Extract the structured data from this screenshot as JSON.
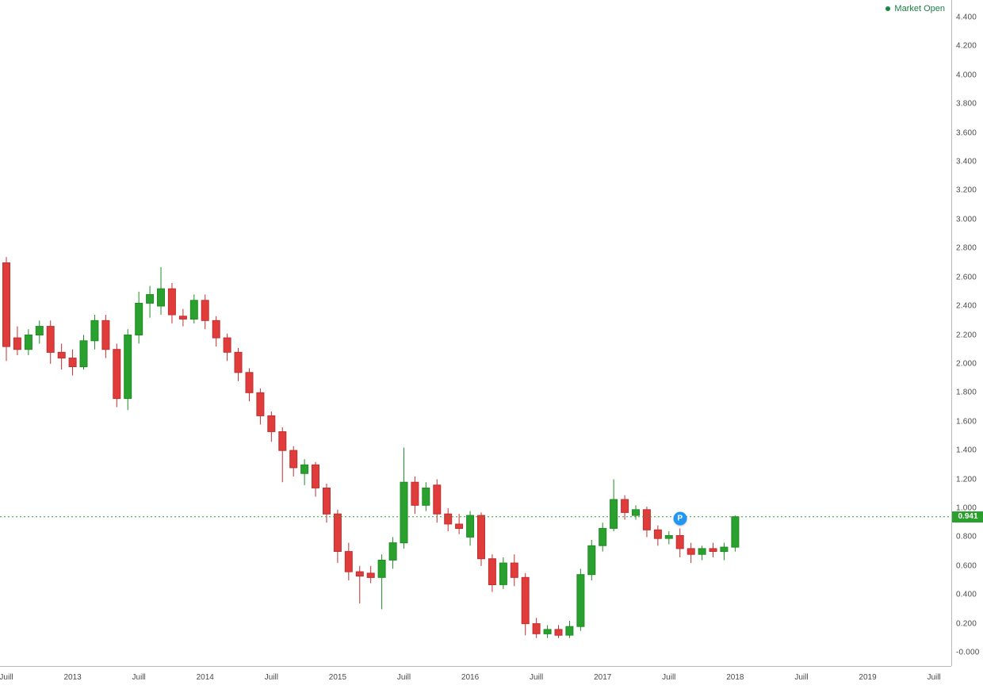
{
  "market_status": {
    "label": "Market Open",
    "color": "#1a7d45",
    "dot_color": "#15873f"
  },
  "chart_data": {
    "type": "candlestick",
    "title": "",
    "interval_hint": "monthly",
    "grid": "off",
    "legend_position": "none",
    "y_axis": {
      "min": 0.0,
      "max": 4.4,
      "step": 0.2,
      "labels": [
        "4.400",
        "4.200",
        "4.000",
        "3.800",
        "3.600",
        "3.400",
        "3.200",
        "3.000",
        "2.800",
        "2.600",
        "2.400",
        "2.200",
        "2.000",
        "1.800",
        "1.600",
        "1.400",
        "1.200",
        "1.000",
        "0.800",
        "0.600",
        "0.400",
        "0.200",
        "-0.000"
      ]
    },
    "x_axis": {
      "ticks": [
        {
          "label": "Juill",
          "month_index": 0
        },
        {
          "label": "2013",
          "month_index": 6
        },
        {
          "label": "Juill",
          "month_index": 12
        },
        {
          "label": "2014",
          "month_index": 18
        },
        {
          "label": "Juill",
          "month_index": 24
        },
        {
          "label": "2015",
          "month_index": 30
        },
        {
          "label": "Juill",
          "month_index": 36
        },
        {
          "label": "2016",
          "month_index": 42
        },
        {
          "label": "Juill",
          "month_index": 48
        },
        {
          "label": "2017",
          "month_index": 54
        },
        {
          "label": "Juill",
          "month_index": 60
        },
        {
          "label": "2018",
          "month_index": 66
        },
        {
          "label": "Juill",
          "month_index": 72
        },
        {
          "label": "2019",
          "month_index": 78
        },
        {
          "label": "Juill",
          "month_index": 84
        }
      ]
    },
    "candles": [
      [
        2.7,
        2.74,
        2.02,
        2.12
      ],
      [
        2.18,
        2.26,
        2.06,
        2.1
      ],
      [
        2.1,
        2.24,
        2.06,
        2.2
      ],
      [
        2.2,
        2.3,
        2.14,
        2.26
      ],
      [
        2.26,
        2.3,
        2.0,
        2.08
      ],
      [
        2.08,
        2.14,
        1.96,
        2.04
      ],
      [
        2.04,
        2.1,
        1.92,
        1.98
      ],
      [
        1.98,
        2.2,
        1.96,
        2.16
      ],
      [
        2.16,
        2.34,
        2.1,
        2.3
      ],
      [
        2.3,
        2.34,
        2.04,
        2.1
      ],
      [
        2.1,
        2.14,
        1.7,
        1.76
      ],
      [
        1.76,
        2.24,
        1.68,
        2.2
      ],
      [
        2.2,
        2.5,
        2.14,
        2.42
      ],
      [
        2.42,
        2.54,
        2.32,
        2.48
      ],
      [
        2.4,
        2.67,
        2.34,
        2.52
      ],
      [
        2.52,
        2.56,
        2.28,
        2.34
      ],
      [
        2.33,
        2.38,
        2.26,
        2.31
      ],
      [
        2.31,
        2.48,
        2.28,
        2.44
      ],
      [
        2.44,
        2.48,
        2.24,
        2.3
      ],
      [
        2.3,
        2.33,
        2.12,
        2.18
      ],
      [
        2.18,
        2.21,
        2.02,
        2.08
      ],
      [
        2.08,
        2.11,
        1.88,
        1.94
      ],
      [
        1.94,
        1.97,
        1.74,
        1.8
      ],
      [
        1.8,
        1.83,
        1.58,
        1.64
      ],
      [
        1.64,
        1.67,
        1.46,
        1.53
      ],
      [
        1.53,
        1.56,
        1.18,
        1.4
      ],
      [
        1.4,
        1.43,
        1.22,
        1.28
      ],
      [
        1.24,
        1.34,
        1.16,
        1.3
      ],
      [
        1.3,
        1.32,
        1.08,
        1.14
      ],
      [
        1.14,
        1.17,
        0.9,
        0.96
      ],
      [
        0.96,
        0.99,
        0.62,
        0.7
      ],
      [
        0.7,
        0.76,
        0.5,
        0.56
      ],
      [
        0.56,
        0.6,
        0.34,
        0.53
      ],
      [
        0.55,
        0.6,
        0.48,
        0.52
      ],
      [
        0.52,
        0.68,
        0.3,
        0.64
      ],
      [
        0.64,
        0.8,
        0.58,
        0.76
      ],
      [
        0.76,
        1.42,
        0.72,
        1.18
      ],
      [
        1.18,
        1.22,
        0.96,
        1.02
      ],
      [
        1.02,
        1.18,
        0.98,
        1.14
      ],
      [
        1.16,
        1.2,
        0.9,
        0.96
      ],
      [
        0.96,
        1.0,
        0.84,
        0.89
      ],
      [
        0.89,
        0.96,
        0.82,
        0.86
      ],
      [
        0.8,
        0.98,
        0.74,
        0.95
      ],
      [
        0.95,
        0.97,
        0.6,
        0.65
      ],
      [
        0.65,
        0.68,
        0.42,
        0.47
      ],
      [
        0.47,
        0.66,
        0.44,
        0.62
      ],
      [
        0.62,
        0.68,
        0.46,
        0.52
      ],
      [
        0.52,
        0.55,
        0.12,
        0.2
      ],
      [
        0.2,
        0.24,
        0.1,
        0.13
      ],
      [
        0.13,
        0.19,
        0.1,
        0.16
      ],
      [
        0.16,
        0.19,
        0.1,
        0.12
      ],
      [
        0.12,
        0.22,
        0.1,
        0.18
      ],
      [
        0.18,
        0.58,
        0.15,
        0.54
      ],
      [
        0.54,
        0.78,
        0.5,
        0.74
      ],
      [
        0.74,
        0.9,
        0.7,
        0.86
      ],
      [
        0.86,
        1.2,
        0.84,
        1.06
      ],
      [
        1.06,
        1.09,
        0.92,
        0.97
      ],
      [
        0.95,
        1.02,
        0.92,
        0.99
      ],
      [
        0.99,
        1.01,
        0.8,
        0.85
      ],
      [
        0.85,
        0.88,
        0.74,
        0.79
      ],
      [
        0.79,
        0.84,
        0.75,
        0.81
      ],
      [
        0.81,
        0.86,
        0.66,
        0.72
      ],
      [
        0.72,
        0.76,
        0.62,
        0.68
      ],
      [
        0.68,
        0.74,
        0.64,
        0.72
      ],
      [
        0.72,
        0.76,
        0.66,
        0.7
      ],
      [
        0.7,
        0.76,
        0.64,
        0.73
      ],
      [
        0.73,
        0.95,
        0.7,
        0.941
      ]
    ],
    "colors": {
      "up": "#2aa12e",
      "up_border": "#1f8c24",
      "down": "#e03c3c",
      "down_border": "#c02f2f"
    },
    "price_line": {
      "value": 0.941,
      "label": "0.941",
      "color": "#2aa12e"
    },
    "marker": {
      "label": "P",
      "month_index": 61,
      "price": 0.93,
      "color": "#2196f3"
    }
  }
}
